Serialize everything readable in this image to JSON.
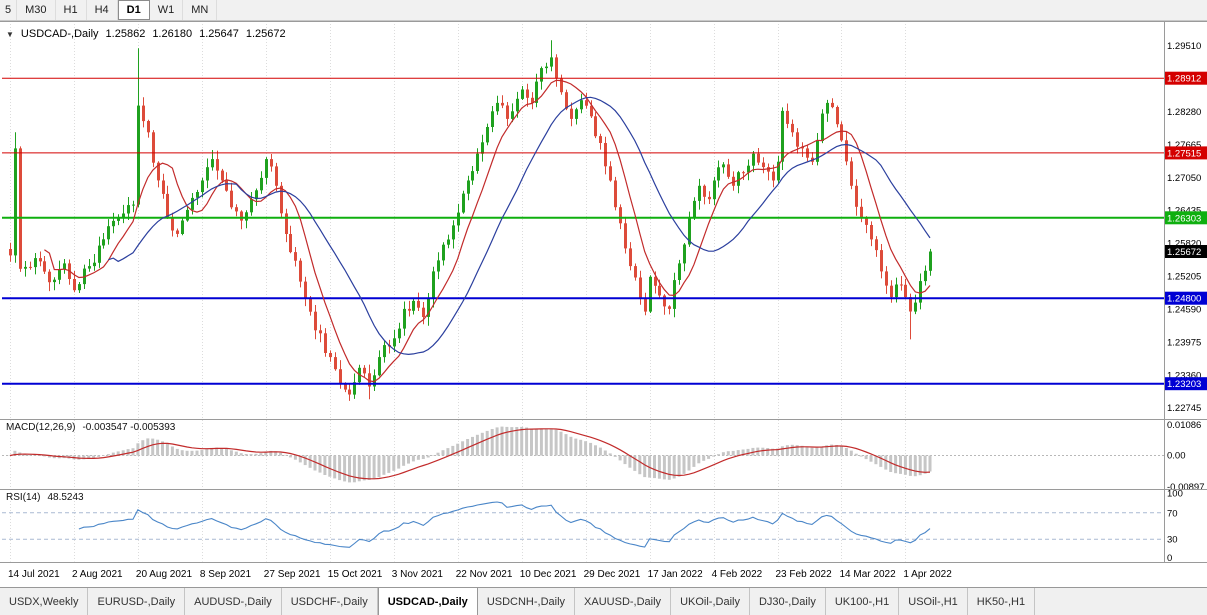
{
  "toolbar": {
    "timeframes": [
      "5",
      "M30",
      "H1",
      "H4",
      "D1",
      "W1",
      "MN"
    ],
    "active_timeframe": "D1"
  },
  "chart_header": {
    "symbol": "USDCAD-,Daily",
    "open": "1.25862",
    "high": "1.26180",
    "low": "1.25647",
    "close": "1.25672"
  },
  "indicator_labels": {
    "macd_name": "MACD(12,26,9)",
    "macd_values": "-0.003547 -0.005393",
    "rsi_name": "RSI(14)",
    "rsi_value": "48.5243"
  },
  "tabs": {
    "items": [
      "USDX,Weekly",
      "EURUSD-,Daily",
      "AUDUSD-,Daily",
      "USDCHF-,Daily",
      "USDCAD-,Daily",
      "USDCNH-,Daily",
      "XAUUSD-,Daily",
      "UKOil-,Daily",
      "DJ30-,Daily",
      "UK100-,H1",
      "USOil-,H1",
      "HK50-,H1"
    ],
    "active": "USDCAD-,Daily"
  },
  "chart_data": {
    "type": "candlestick",
    "symbol": "USDCAD-",
    "timeframe": "Daily",
    "x_labels": [
      "14 Jul 2021",
      "2 Aug 2021",
      "20 Aug 2021",
      "8 Sep 2021",
      "27 Sep 2021",
      "15 Oct 2021",
      "3 Nov 2021",
      "22 Nov 2021",
      "10 Dec 2021",
      "29 Dec 2021",
      "17 Jan 2022",
      "4 Feb 2022",
      "23 Feb 2022",
      "14 Mar 2022",
      "1 Apr 2022"
    ],
    "bars_per_label": 13,
    "bar_count": 188,
    "y_ticks": [
      "1.29510",
      "1.28280",
      "1.27665",
      "1.27050",
      "1.26435",
      "1.25820",
      "1.25205",
      "1.24590",
      "1.23975",
      "1.23360",
      "1.22745"
    ],
    "y_range": {
      "top": 1.2998,
      "bottom": 1.2258
    },
    "candle_colors": {
      "up": "#1fa11f",
      "down": "#dd4b3a"
    },
    "levels": [
      {
        "value": 1.28912,
        "color": "#d40000",
        "width": 1,
        "label": "1.28912"
      },
      {
        "value": 1.27515,
        "color": "#d40000",
        "width": 1,
        "label": "1.27515"
      },
      {
        "value": 1.26303,
        "color": "#0faf0f",
        "width": 2,
        "label": "1.26303"
      },
      {
        "value": 1.248,
        "color": "#0000d4",
        "width": 2,
        "label": "1.24800"
      },
      {
        "value": 1.23203,
        "color": "#0000d4",
        "width": 2,
        "label": "1.23203"
      }
    ],
    "current_price": {
      "label": "1.25672",
      "badge_color": "#000000"
    },
    "price_anchors": [
      [
        0,
        1.256
      ],
      [
        1,
        1.276
      ],
      [
        2,
        1.2535
      ],
      [
        5,
        1.2555
      ],
      [
        8,
        1.251
      ],
      [
        11,
        1.2545
      ],
      [
        13,
        1.2495
      ],
      [
        16,
        1.254
      ],
      [
        19,
        1.259
      ],
      [
        22,
        1.263
      ],
      [
        25,
        1.2655
      ],
      [
        26,
        1.284
      ],
      [
        28,
        1.279
      ],
      [
        30,
        1.27
      ],
      [
        32,
        1.263
      ],
      [
        34,
        1.26
      ],
      [
        36,
        1.2645
      ],
      [
        39,
        1.27
      ],
      [
        41,
        1.274
      ],
      [
        43,
        1.27
      ],
      [
        45,
        1.265
      ],
      [
        47,
        1.2625
      ],
      [
        49,
        1.2665
      ],
      [
        52,
        1.274
      ],
      [
        54,
        1.269
      ],
      [
        56,
        1.26
      ],
      [
        58,
        1.255
      ],
      [
        60,
        1.248
      ],
      [
        62,
        1.242
      ],
      [
        65,
        1.237
      ],
      [
        67,
        1.232
      ],
      [
        69,
        1.23
      ],
      [
        71,
        1.235
      ],
      [
        73,
        1.2315
      ],
      [
        75,
        1.237
      ],
      [
        78,
        1.2405
      ],
      [
        80,
        1.246
      ],
      [
        82,
        1.2475
      ],
      [
        84,
        1.2445
      ],
      [
        86,
        1.253
      ],
      [
        88,
        1.258
      ],
      [
        91,
        1.264
      ],
      [
        93,
        1.27
      ],
      [
        95,
        1.275
      ],
      [
        97,
        1.28
      ],
      [
        99,
        1.2845
      ],
      [
        101,
        1.2815
      ],
      [
        104,
        1.287
      ],
      [
        106,
        1.2845
      ],
      [
        108,
        1.291
      ],
      [
        110,
        1.293
      ],
      [
        112,
        1.2865
      ],
      [
        114,
        1.2815
      ],
      [
        116,
        1.285
      ],
      [
        118,
        1.282
      ],
      [
        120,
        1.277
      ],
      [
        122,
        1.27
      ],
      [
        124,
        1.262
      ],
      [
        126,
        1.254
      ],
      [
        128,
        1.248
      ],
      [
        129,
        1.2455
      ],
      [
        130,
        1.252
      ],
      [
        132,
        1.2485
      ],
      [
        134,
        1.246
      ],
      [
        136,
        1.2545
      ],
      [
        138,
        1.263
      ],
      [
        140,
        1.269
      ],
      [
        142,
        1.2665
      ],
      [
        143,
        1.27
      ],
      [
        145,
        1.273
      ],
      [
        147,
        1.269
      ],
      [
        149,
        1.2715
      ],
      [
        151,
        1.275
      ],
      [
        153,
        1.2725
      ],
      [
        155,
        1.27
      ],
      [
        156,
        1.2735
      ],
      [
        157,
        1.283
      ],
      [
        159,
        1.279
      ],
      [
        161,
        1.276
      ],
      [
        163,
        1.2735
      ],
      [
        165,
        1.2825
      ],
      [
        166,
        1.2845
      ],
      [
        168,
        1.2805
      ],
      [
        169,
        1.2775
      ],
      [
        171,
        1.269
      ],
      [
        173,
        1.263
      ],
      [
        175,
        1.259
      ],
      [
        177,
        1.253
      ],
      [
        179,
        1.2482
      ],
      [
        181,
        1.2505
      ],
      [
        182,
        1.2482
      ],
      [
        183,
        1.2455
      ],
      [
        185,
        1.2512
      ],
      [
        187,
        1.25672
      ]
    ],
    "wick_events": [
      {
        "i": 1,
        "high": 1.279
      },
      {
        "i": 26,
        "high": 1.2947
      },
      {
        "i": 69,
        "low": 1.2288
      },
      {
        "i": 73,
        "low": 1.2291
      },
      {
        "i": 110,
        "high": 1.2962
      },
      {
        "i": 129,
        "low": 1.2448
      },
      {
        "i": 183,
        "low": 1.2403
      }
    ],
    "moving_averages": [
      {
        "period": 8,
        "color": "#c22b2b"
      },
      {
        "period": 21,
        "color": "#2b3f9e"
      }
    ],
    "macd": {
      "fast": 12,
      "slow": 26,
      "signal": 9,
      "axis_labels": [
        "0.01086",
        "0.00",
        "-0.00897"
      ],
      "histogram_color": "#c6c6c6",
      "signal_color": "#c22b2b"
    },
    "rsi": {
      "period": 14,
      "axis_labels": [
        "100",
        "70",
        "30",
        "0"
      ],
      "levels": [
        70,
        30
      ],
      "line_color": "#4a86c8",
      "level_color": "#a9b9d2"
    }
  }
}
